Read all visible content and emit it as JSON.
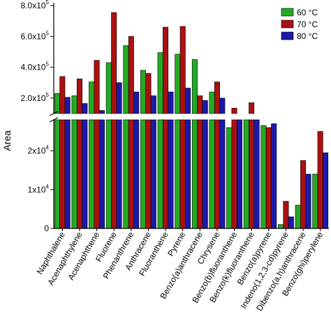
{
  "chart_data": {
    "type": "bar",
    "ylabel": "Area",
    "axis_break": true,
    "upper_ylim": [
      100000,
      800000
    ],
    "lower_ylim": [
      0,
      28000
    ],
    "upper_ticks": [
      {
        "value": 800000,
        "mant": "8.0x10",
        "exp": "5"
      },
      {
        "value": 600000,
        "mant": "6.0x10",
        "exp": "5"
      },
      {
        "value": 400000,
        "mant": "4.0x10",
        "exp": "5"
      },
      {
        "value": 200000,
        "mant": "2.0x10",
        "exp": "5"
      }
    ],
    "lower_ticks": [
      {
        "value": 20000,
        "mant": "2x10",
        "exp": "4"
      },
      {
        "value": 10000,
        "mant": "1x10",
        "exp": "4"
      },
      {
        "value": 0,
        "mant": "0",
        "exp": ""
      }
    ],
    "categories": [
      "Naphthalene",
      "Acenaphthylene",
      "Acenaphthene",
      "Fluorene",
      "Phenanthrene",
      "Anthracene",
      "Fluoranthene",
      "Pyrene",
      "Benzo(a)anthracene",
      "Chrysene",
      "Benzo(b)fluoranthene",
      "Benzo(k)fluoranthene",
      "Benzo(a)pyrene",
      "Indeno(1,2,3-cd)pyrene",
      "Dibenzo(a,h)anthracene",
      "Benzo(ghi)perylene"
    ],
    "series": [
      {
        "name": "60 °C",
        "color": "#22aa22",
        "values": [
          230000,
          215000,
          305000,
          430000,
          540000,
          380000,
          495000,
          485000,
          450000,
          240000,
          26000,
          28000,
          26500,
          1000,
          6000,
          14000
        ]
      },
      {
        "name": "70 °C",
        "color": "#aa1111",
        "values": [
          340000,
          325000,
          445000,
          755000,
          600000,
          360000,
          660000,
          665000,
          215000,
          305000,
          135000,
          170000,
          26000,
          7000,
          17500,
          25000
        ]
      },
      {
        "name": "80 °C",
        "color": "#1a1aaa",
        "values": [
          205000,
          165000,
          120000,
          300000,
          240000,
          215000,
          240000,
          265000,
          185000,
          200000,
          95000,
          60000,
          27000,
          3000,
          14000,
          19500
        ]
      }
    ],
    "legend_position": "top-right",
    "grid": false
  }
}
